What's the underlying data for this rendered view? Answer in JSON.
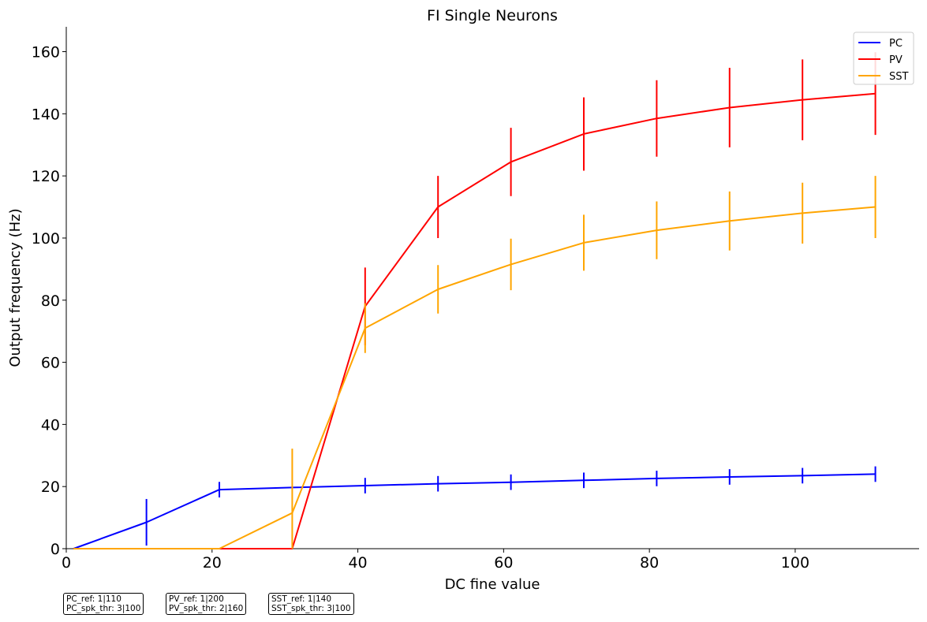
{
  "chart_data": {
    "type": "line",
    "title": "FI Single Neurons",
    "xlabel": "DC fine value",
    "ylabel": "Output frequency (Hz)",
    "xlim": [
      0,
      117
    ],
    "ylim": [
      0,
      168
    ],
    "xticks": [
      0,
      20,
      40,
      60,
      80,
      100
    ],
    "yticks": [
      0,
      20,
      40,
      60,
      80,
      100,
      120,
      140,
      160
    ],
    "legend_position": "top-right",
    "grid": false,
    "x": [
      1,
      11,
      21,
      31,
      41,
      51,
      61,
      71,
      81,
      91,
      101,
      111
    ],
    "series": [
      {
        "name": "PC",
        "color": "#0000ff",
        "values": [
          0,
          8.5,
          19,
          19.7,
          20.3,
          20.9,
          21.4,
          22.0,
          22.6,
          23.1,
          23.5,
          24.0
        ],
        "errors": [
          0,
          7.5,
          2.5,
          0,
          2.5,
          2.5,
          2.5,
          2.5,
          2.5,
          2.5,
          2.5,
          2.5
        ]
      },
      {
        "name": "PV",
        "color": "#ff0000",
        "values": [
          0,
          0,
          0,
          0,
          78,
          110,
          124.5,
          133.5,
          138.5,
          142,
          144.5,
          146.5
        ],
        "errors": [
          0,
          0,
          0,
          0,
          12.5,
          10,
          11,
          11.8,
          12.3,
          12.8,
          13,
          13.3
        ]
      },
      {
        "name": "SST",
        "color": "#ffa500",
        "values": [
          0,
          0,
          0,
          11.5,
          71,
          83.5,
          91.5,
          98.5,
          102.5,
          105.5,
          108,
          110
        ],
        "errors": [
          0,
          0,
          0,
          20.7,
          8,
          7.8,
          8.3,
          9,
          9.3,
          9.5,
          9.8,
          10
        ]
      }
    ]
  },
  "param_boxes": [
    {
      "line1": "PC_ref: 1|110",
      "line2": "PC_spk_thr: 3|100"
    },
    {
      "line1": "PV_ref: 1|200",
      "line2": "PV_spk_thr: 2|160"
    },
    {
      "line1": "SST_ref: 1|140",
      "line2": "SST_spk_thr: 3|100"
    }
  ]
}
